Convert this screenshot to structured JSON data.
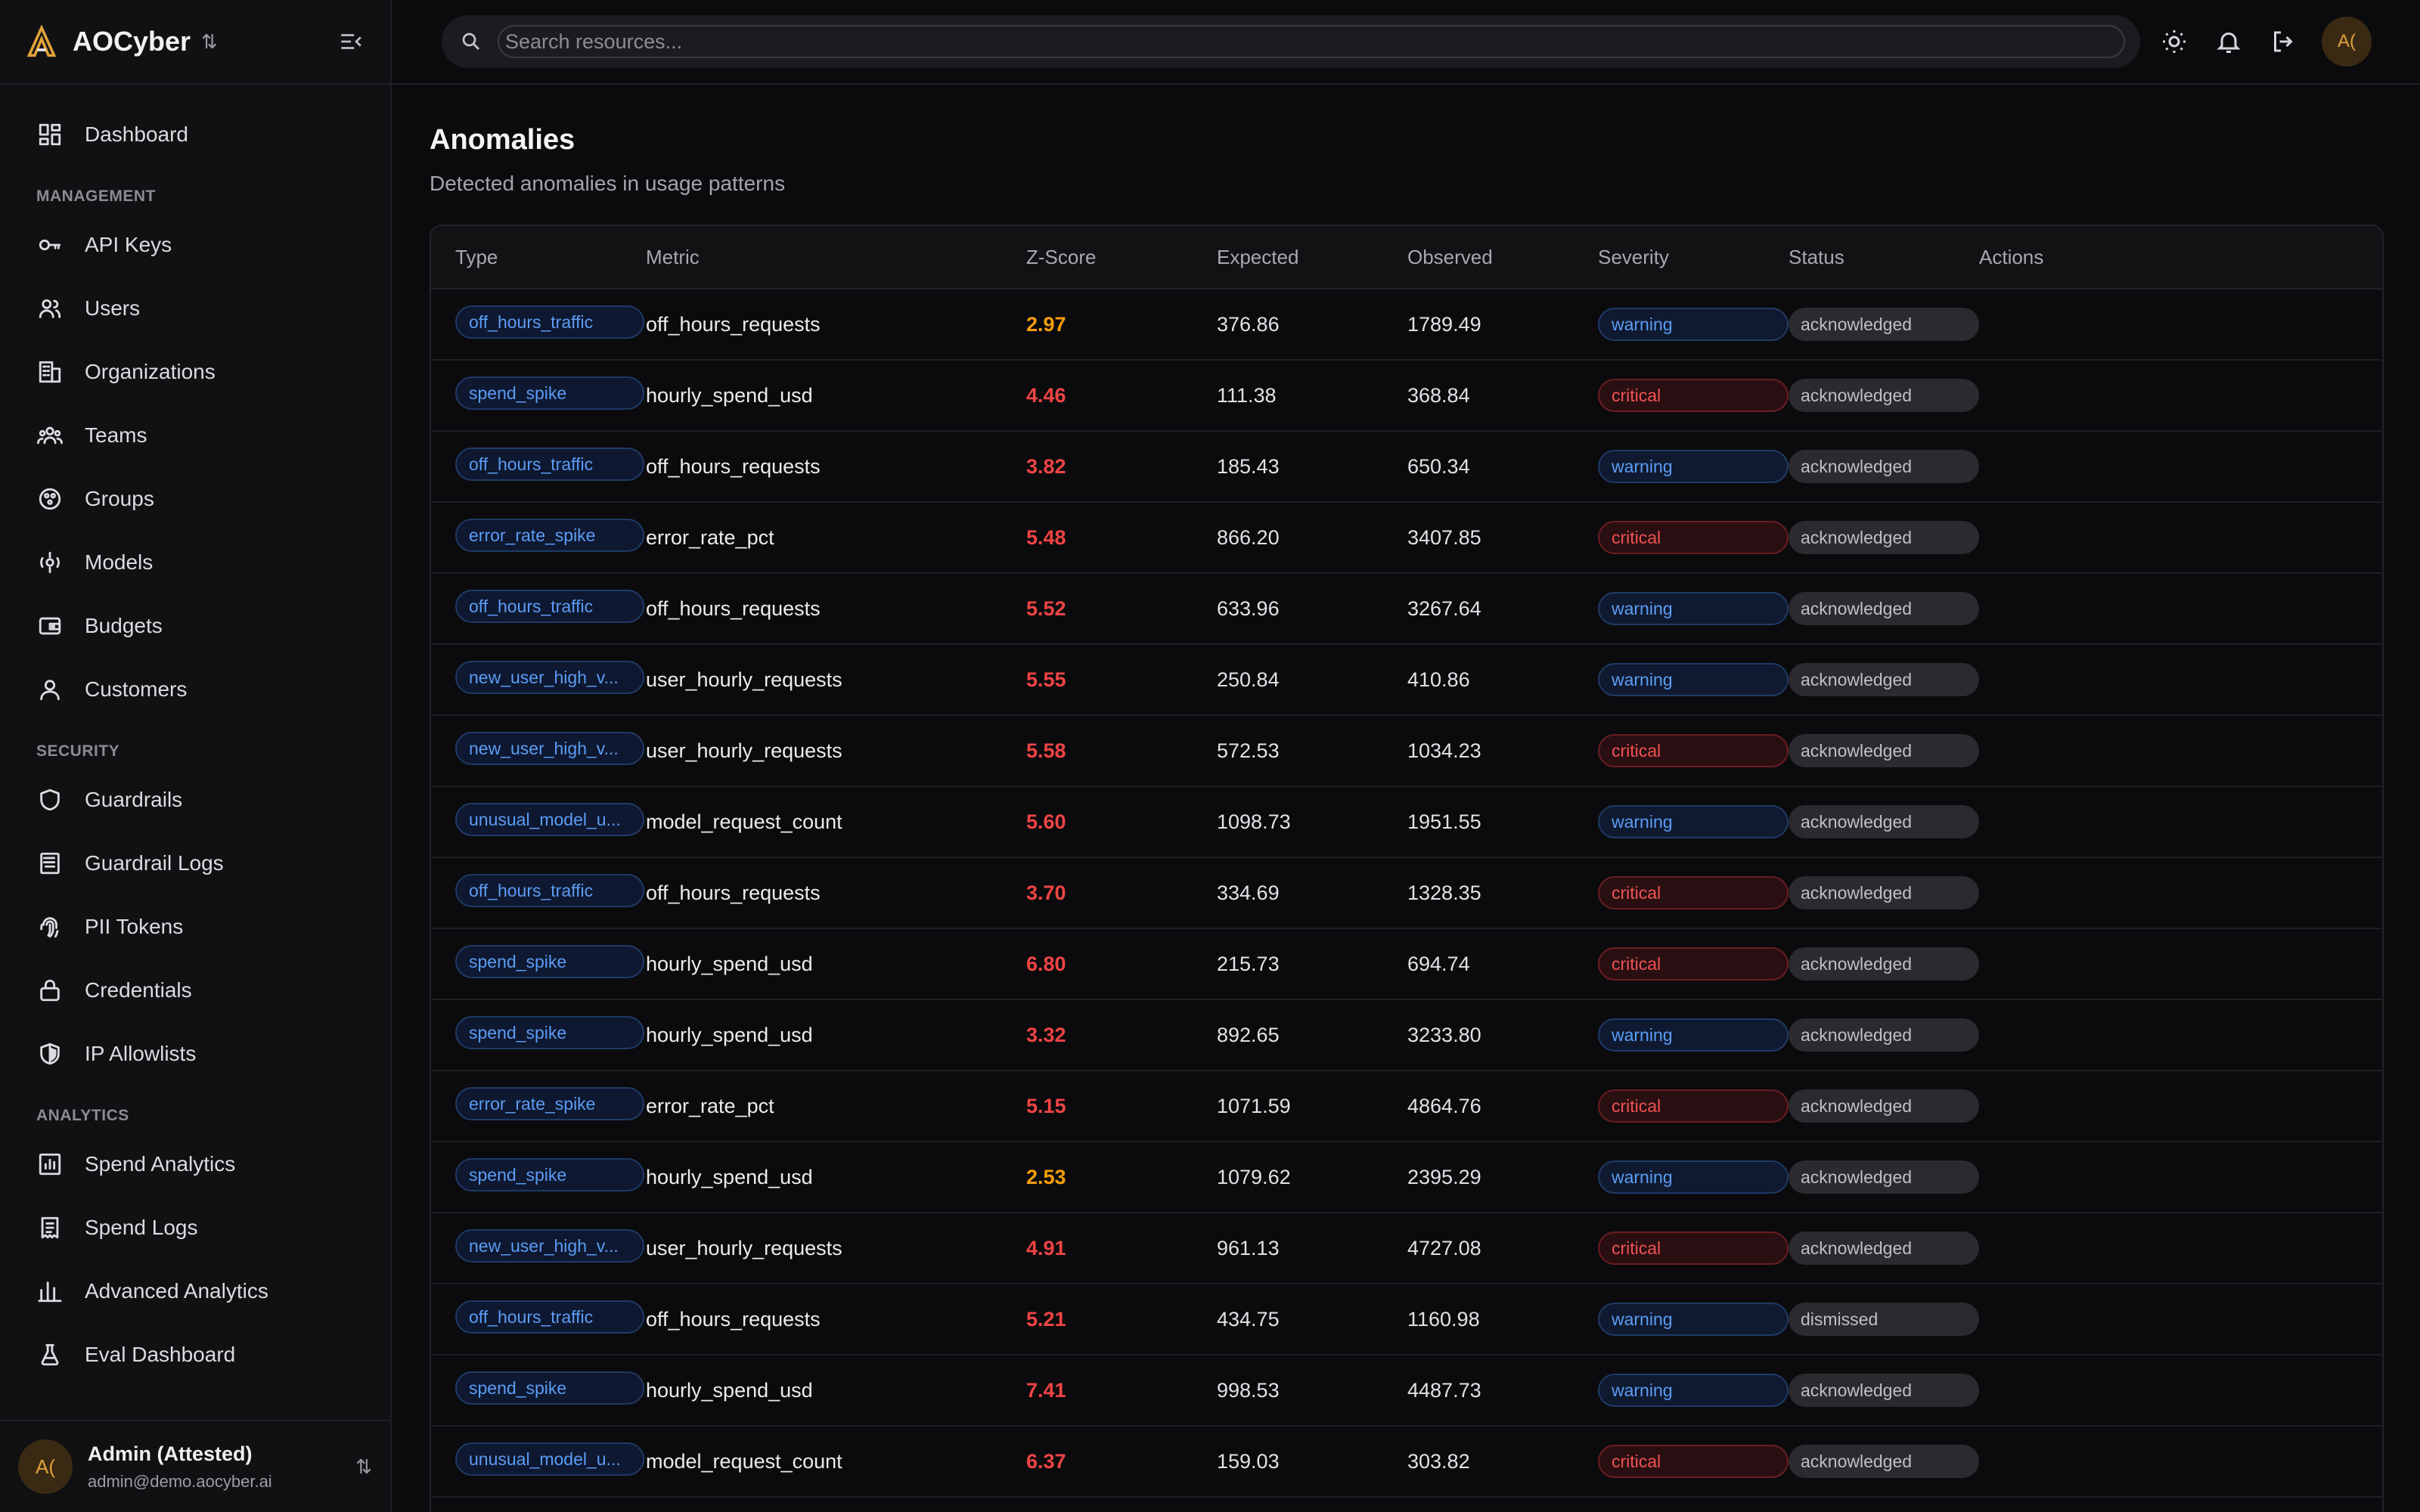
{
  "brand": {
    "name": "AOCyber"
  },
  "nav": {
    "top": [
      {
        "label": "Dashboard",
        "icon": "dashboard-icon"
      }
    ],
    "sections": [
      {
        "title": "MANAGEMENT",
        "items": [
          {
            "label": "API Keys",
            "icon": "key-icon"
          },
          {
            "label": "Users",
            "icon": "users-icon"
          },
          {
            "label": "Organizations",
            "icon": "building-icon"
          },
          {
            "label": "Teams",
            "icon": "team-icon"
          },
          {
            "label": "Groups",
            "icon": "groups-icon"
          },
          {
            "label": "Models",
            "icon": "models-icon"
          },
          {
            "label": "Budgets",
            "icon": "wallet-icon"
          },
          {
            "label": "Customers",
            "icon": "customer-icon"
          }
        ]
      },
      {
        "title": "SECURITY",
        "items": [
          {
            "label": "Guardrails",
            "icon": "shield-icon"
          },
          {
            "label": "Guardrail Logs",
            "icon": "logs-icon"
          },
          {
            "label": "PII Tokens",
            "icon": "fingerprint-icon"
          },
          {
            "label": "Credentials",
            "icon": "lock-icon"
          },
          {
            "label": "IP Allowlists",
            "icon": "shield-half-icon"
          }
        ]
      },
      {
        "title": "ANALYTICS",
        "items": [
          {
            "label": "Spend Analytics",
            "icon": "chart-icon"
          },
          {
            "label": "Spend Logs",
            "icon": "receipt-icon"
          },
          {
            "label": "Advanced Analytics",
            "icon": "bar-chart-icon"
          },
          {
            "label": "Eval Dashboard",
            "icon": "flask-icon"
          }
        ]
      }
    ]
  },
  "user": {
    "initials": "A(",
    "name": "Admin (Attested)",
    "email": "admin@demo.aocyber.ai"
  },
  "search": {
    "placeholder": "Search resources..."
  },
  "topbar": {
    "avatar": "A("
  },
  "page": {
    "title": "Anomalies",
    "subtitle": "Detected anomalies in usage patterns"
  },
  "table": {
    "headers": {
      "type": "Type",
      "metric": "Metric",
      "z": "Z-Score",
      "expected": "Expected",
      "observed": "Observed",
      "severity": "Severity",
      "status": "Status",
      "actions": "Actions"
    },
    "rows": [
      {
        "type": "off_hours_traffic",
        "metric": "off_hours_requests",
        "z": "2.97",
        "expected": "376.86",
        "observed": "1789.49",
        "severity": "warning",
        "status": "acknowledged"
      },
      {
        "type": "spend_spike",
        "metric": "hourly_spend_usd",
        "z": "4.46",
        "expected": "111.38",
        "observed": "368.84",
        "severity": "critical",
        "status": "acknowledged"
      },
      {
        "type": "off_hours_traffic",
        "metric": "off_hours_requests",
        "z": "3.82",
        "expected": "185.43",
        "observed": "650.34",
        "severity": "warning",
        "status": "acknowledged"
      },
      {
        "type": "error_rate_spike",
        "metric": "error_rate_pct",
        "z": "5.48",
        "expected": "866.20",
        "observed": "3407.85",
        "severity": "critical",
        "status": "acknowledged"
      },
      {
        "type": "off_hours_traffic",
        "metric": "off_hours_requests",
        "z": "5.52",
        "expected": "633.96",
        "observed": "3267.64",
        "severity": "warning",
        "status": "acknowledged"
      },
      {
        "type": "new_user_high_v...",
        "metric": "user_hourly_requests",
        "z": "5.55",
        "expected": "250.84",
        "observed": "410.86",
        "severity": "warning",
        "status": "acknowledged"
      },
      {
        "type": "new_user_high_v...",
        "metric": "user_hourly_requests",
        "z": "5.58",
        "expected": "572.53",
        "observed": "1034.23",
        "severity": "critical",
        "status": "acknowledged"
      },
      {
        "type": "unusual_model_u...",
        "metric": "model_request_count",
        "z": "5.60",
        "expected": "1098.73",
        "observed": "1951.55",
        "severity": "warning",
        "status": "acknowledged"
      },
      {
        "type": "off_hours_traffic",
        "metric": "off_hours_requests",
        "z": "3.70",
        "expected": "334.69",
        "observed": "1328.35",
        "severity": "critical",
        "status": "acknowledged"
      },
      {
        "type": "spend_spike",
        "metric": "hourly_spend_usd",
        "z": "6.80",
        "expected": "215.73",
        "observed": "694.74",
        "severity": "critical",
        "status": "acknowledged"
      },
      {
        "type": "spend_spike",
        "metric": "hourly_spend_usd",
        "z": "3.32",
        "expected": "892.65",
        "observed": "3233.80",
        "severity": "warning",
        "status": "acknowledged"
      },
      {
        "type": "error_rate_spike",
        "metric": "error_rate_pct",
        "z": "5.15",
        "expected": "1071.59",
        "observed": "4864.76",
        "severity": "critical",
        "status": "acknowledged"
      },
      {
        "type": "spend_spike",
        "metric": "hourly_spend_usd",
        "z": "2.53",
        "expected": "1079.62",
        "observed": "2395.29",
        "severity": "warning",
        "status": "acknowledged"
      },
      {
        "type": "new_user_high_v...",
        "metric": "user_hourly_requests",
        "z": "4.91",
        "expected": "961.13",
        "observed": "4727.08",
        "severity": "critical",
        "status": "acknowledged"
      },
      {
        "type": "off_hours_traffic",
        "metric": "off_hours_requests",
        "z": "5.21",
        "expected": "434.75",
        "observed": "1160.98",
        "severity": "warning",
        "status": "dismissed"
      },
      {
        "type": "spend_spike",
        "metric": "hourly_spend_usd",
        "z": "7.41",
        "expected": "998.53",
        "observed": "4487.73",
        "severity": "warning",
        "status": "acknowledged"
      },
      {
        "type": "unusual_model_u...",
        "metric": "model_request_count",
        "z": "6.37",
        "expected": "159.03",
        "observed": "303.82",
        "severity": "critical",
        "status": "acknowledged"
      }
    ]
  },
  "colors": {
    "accent": "#5b9cf5",
    "critical": "#ef4444",
    "warning_z": "#f59e0b",
    "brand": "#e0a23a"
  }
}
